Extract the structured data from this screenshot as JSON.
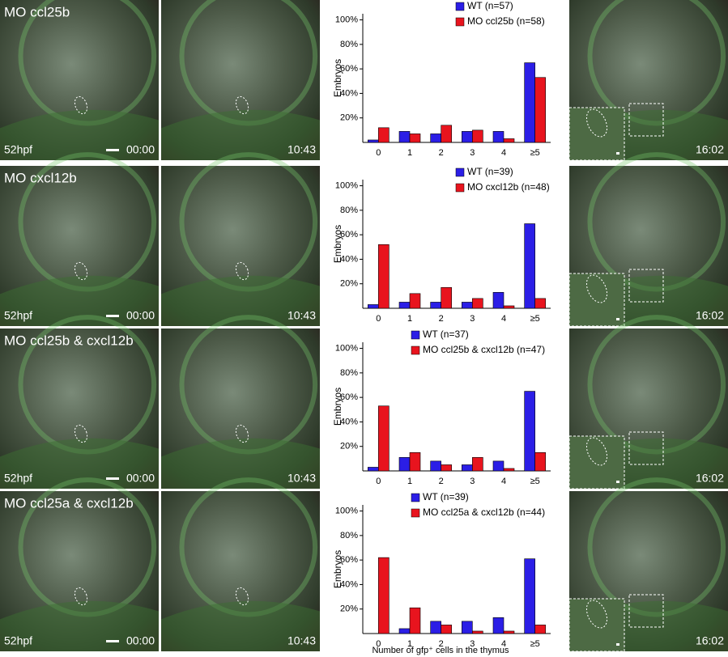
{
  "panels": [
    {
      "label": "MO ccl25b",
      "stage": "52hpf",
      "times": [
        "00:00",
        "10:43",
        "16:02"
      ]
    },
    {
      "label": "MO cxcl12b",
      "stage": "52hpf",
      "times": [
        "00:00",
        "10:43",
        "16:02"
      ]
    },
    {
      "label": "MO ccl25b & cxcl12b",
      "stage": "52hpf",
      "times": [
        "00:00",
        "10:43",
        "16:02"
      ]
    },
    {
      "label": "MO ccl25a & cxcl12b",
      "stage": "52hpf",
      "times": [
        "00:00",
        "10:43",
        "16:02"
      ]
    }
  ],
  "chart_data": [
    {
      "type": "bar",
      "ylabel": "Embryos",
      "categories": [
        "0",
        "1",
        "2",
        "3",
        "4",
        "≥5"
      ],
      "series": [
        {
          "name": "WT (n=57)",
          "color": "#2b1ee6",
          "values": [
            2,
            9,
            7,
            9,
            9,
            65
          ]
        },
        {
          "name": "MO ccl25b (n=58)",
          "color": "#e8141e",
          "values": [
            12,
            7,
            14,
            10,
            3,
            53
          ]
        }
      ],
      "ylim": [
        0,
        105
      ],
      "yticks": [
        {
          "value": 20,
          "label": "20%"
        },
        {
          "value": 40,
          "label": "40%"
        },
        {
          "value": 60,
          "label": "60%"
        },
        {
          "value": 80,
          "label": "80%"
        },
        {
          "value": 100,
          "label": "100%"
        }
      ]
    },
    {
      "type": "bar",
      "ylabel": "Embryos",
      "categories": [
        "0",
        "1",
        "2",
        "3",
        "4",
        "≥5"
      ],
      "series": [
        {
          "name": "WT (n=39)",
          "color": "#2b1ee6",
          "values": [
            3,
            5,
            5,
            5,
            13,
            69
          ]
        },
        {
          "name": "MO cxcl12b (n=48)",
          "color": "#e8141e",
          "values": [
            52,
            12,
            17,
            8,
            2,
            8
          ]
        }
      ],
      "ylim": [
        0,
        105
      ],
      "yticks": [
        {
          "value": 20,
          "label": "20%"
        },
        {
          "value": 40,
          "label": "40%"
        },
        {
          "value": 60,
          "label": "60%"
        },
        {
          "value": 80,
          "label": "80%"
        },
        {
          "value": 100,
          "label": "100%"
        }
      ]
    },
    {
      "type": "bar",
      "ylabel": "Embryos",
      "categories": [
        "0",
        "1",
        "2",
        "3",
        "4",
        "≥5"
      ],
      "series": [
        {
          "name": "WT (n=37)",
          "color": "#2b1ee6",
          "values": [
            3,
            11,
            8,
            5,
            8,
            65
          ]
        },
        {
          "name": "MO ccl25b & cxcl12b (n=47)",
          "color": "#e8141e",
          "values": [
            53,
            15,
            5,
            11,
            2,
            15
          ]
        }
      ],
      "ylim": [
        0,
        105
      ],
      "yticks": [
        {
          "value": 20,
          "label": "20%"
        },
        {
          "value": 40,
          "label": "40%"
        },
        {
          "value": 60,
          "label": "60%"
        },
        {
          "value": 80,
          "label": "80%"
        },
        {
          "value": 100,
          "label": "100%"
        }
      ]
    },
    {
      "type": "bar",
      "ylabel": "Embryos",
      "xlabel": "Number of gfp⁺ cells in the thymus",
      "categories": [
        "0",
        "1",
        "2",
        "3",
        "4",
        "≥5"
      ],
      "series": [
        {
          "name": "WT (n=39)",
          "color": "#2b1ee6",
          "values": [
            0,
            4,
            10,
            10,
            13,
            61
          ]
        },
        {
          "name": "MO ccl25a & cxcl12b (n=44)",
          "color": "#e8141e",
          "values": [
            62,
            21,
            7,
            2,
            2,
            7
          ]
        }
      ],
      "ylim": [
        0,
        105
      ],
      "yticks": [
        {
          "value": 20,
          "label": "20%"
        },
        {
          "value": 40,
          "label": "40%"
        },
        {
          "value": 60,
          "label": "60%"
        },
        {
          "value": 80,
          "label": "80%"
        },
        {
          "value": 100,
          "label": "100%"
        }
      ]
    }
  ]
}
